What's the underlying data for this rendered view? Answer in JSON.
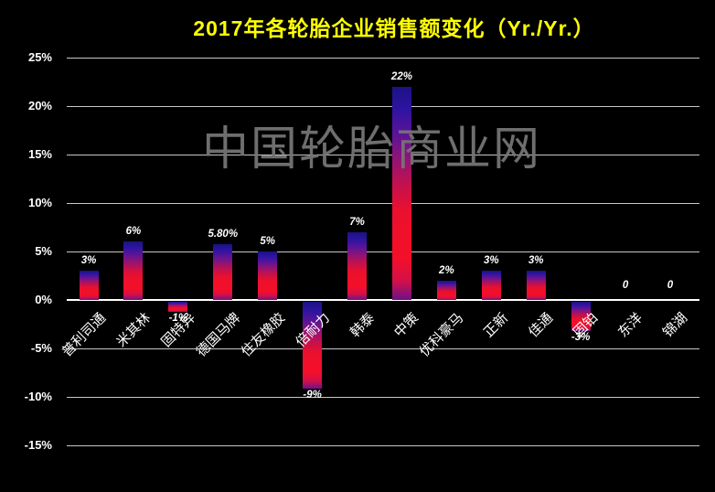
{
  "chart_data": {
    "type": "bar",
    "title": "2017年各轮胎企业销售额变化（Yr./Yr.）",
    "categories": [
      "普利司通",
      "米其林",
      "固特异",
      "德国马牌",
      "住友橡胶",
      "倍耐力",
      "韩泰",
      "中策",
      "优科豪马",
      "正新",
      "佳通",
      "固铂",
      "东洋",
      "锦湖"
    ],
    "values": [
      3,
      6,
      -1,
      5.8,
      5,
      -9,
      7,
      22,
      2,
      3,
      3,
      -3,
      0,
      0
    ],
    "value_labels": [
      "3%",
      "6%",
      "-1%",
      "5.80%",
      "5%",
      "-9%",
      "7%",
      "22%",
      "2%",
      "3%",
      "3%",
      "-3%",
      "0",
      "0"
    ],
    "y_ticks": [
      "25%",
      "20%",
      "15%",
      "10%",
      "5%",
      "0%",
      "-5%",
      "-10%",
      "-15%"
    ],
    "y_tick_values": [
      25,
      20,
      15,
      10,
      5,
      0,
      -5,
      -10,
      -15
    ],
    "ylim": [
      -15,
      25
    ],
    "xlabel": "",
    "ylabel": "",
    "grid": true,
    "legend": false,
    "bar_gradient": [
      "#1c1284",
      "#2c14a0",
      "#5a1498",
      "#8c1478",
      "#c01150",
      "#ea102e",
      "#f50f28",
      "#d41048",
      "#6c1288"
    ]
  },
  "watermark": "中国轮胎商业网",
  "colors": {
    "background": "#000000",
    "title": "#ffff00",
    "grid": "#ffffff",
    "label": "#ffffff",
    "watermark": "#767676"
  }
}
